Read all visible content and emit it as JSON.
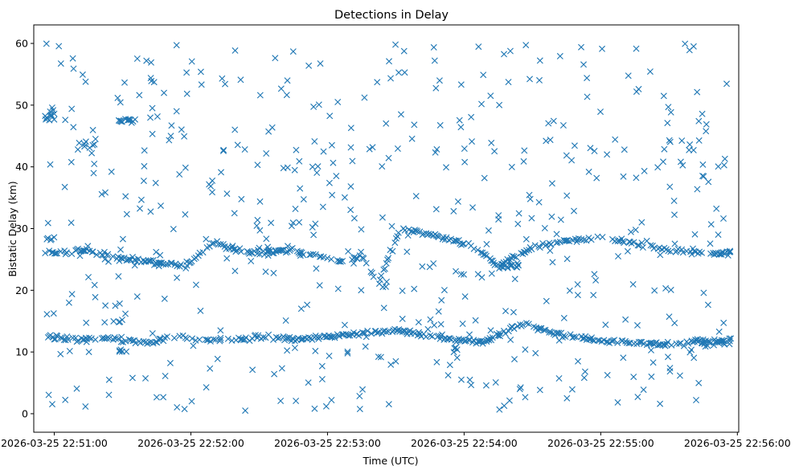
{
  "chart_data": {
    "type": "scatter",
    "title": "Detections in Delay",
    "xlabel": "Time (UTC)",
    "ylabel": "Bistatic Delay (km)",
    "marker": "x",
    "color": "#1f77b4",
    "x_unit": "seconds since 2026-03-25 22:50:00",
    "xlim": [
      51.0,
      360.6
    ],
    "ylim": [
      -3.0,
      63.0
    ],
    "xticks": [
      60,
      120,
      180,
      240,
      300,
      360
    ],
    "xtick_labels": [
      "2026-03-25 22:51:00",
      "2026-03-25 22:52:00",
      "2026-03-25 22:53:00",
      "2026-03-25 22:54:00",
      "2026-03-25 22:55:00",
      "2026-03-25 22:56:00"
    ],
    "yticks": [
      0,
      10,
      20,
      30,
      40,
      50,
      60
    ],
    "ytick_labels": [
      "0",
      "10",
      "20",
      "30",
      "40",
      "50",
      "60"
    ],
    "time_span": [
      56,
      357
    ],
    "tracks": [
      {
        "name": "upper-track",
        "points": [
          [
            56,
            26.0
          ],
          [
            75,
            26.5
          ],
          [
            90,
            25.0
          ],
          [
            105,
            24.5
          ],
          [
            118,
            24.0
          ],
          [
            130,
            27.8
          ],
          [
            140,
            26.5
          ],
          [
            152,
            26.0
          ],
          [
            162,
            26.5
          ],
          [
            175,
            25.8
          ],
          [
            185,
            24.5
          ],
          [
            195,
            25.5
          ],
          [
            202,
            21.0
          ],
          [
            212,
            30.0
          ],
          [
            225,
            29.0
          ],
          [
            242,
            27.5
          ],
          [
            255,
            24.0
          ],
          [
            270,
            27.0
          ],
          [
            285,
            28.0
          ],
          [
            300,
            28.5
          ],
          [
            315,
            27.5
          ],
          [
            330,
            26.5
          ],
          [
            345,
            26.0
          ],
          [
            357,
            26.0
          ]
        ]
      },
      {
        "name": "lower-track",
        "points": [
          [
            56,
            12.5
          ],
          [
            70,
            12.0
          ],
          [
            85,
            12.3
          ],
          [
            100,
            11.5
          ],
          [
            115,
            12.5
          ],
          [
            128,
            11.8
          ],
          [
            140,
            12.0
          ],
          [
            155,
            12.5
          ],
          [
            168,
            12.0
          ],
          [
            180,
            12.5
          ],
          [
            195,
            13.0
          ],
          [
            210,
            13.5
          ],
          [
            220,
            13.0
          ],
          [
            235,
            12.0
          ],
          [
            248,
            11.5
          ],
          [
            265,
            14.5
          ],
          [
            280,
            13.0
          ],
          [
            295,
            12.0
          ],
          [
            310,
            11.5
          ],
          [
            325,
            11.2
          ],
          [
            340,
            11.5
          ],
          [
            357,
            12.0
          ]
        ]
      }
    ],
    "clusters": [
      {
        "x": [
          56,
          60
        ],
        "y": 48.0,
        "n": 10
      },
      {
        "x": [
          88,
          96
        ],
        "y": 47.5,
        "n": 14
      },
      {
        "x": [
          56,
          60
        ],
        "y": 28.5,
        "n": 5
      },
      {
        "x": [
          73,
          78
        ],
        "y": 43.5,
        "n": 6
      },
      {
        "x": [
          82,
          90
        ],
        "y": 15.0,
        "n": 5
      },
      {
        "x": [
          86,
          92
        ],
        "y": 10.0,
        "n": 5
      },
      {
        "x": [
          148,
          158
        ],
        "y": 26.5,
        "n": 6
      },
      {
        "x": [
          235,
          240
        ],
        "y": 10.5,
        "n": 5
      },
      {
        "x": [
          256,
          266
        ],
        "y": 24.0,
        "n": 14
      },
      {
        "x": [
          340,
          357
        ],
        "y": 11.5,
        "n": 14
      },
      {
        "x": [
          352,
          357
        ],
        "y": 26.0,
        "n": 6
      }
    ],
    "scatter_noise": {
      "n": 520,
      "y_range": [
        0.5,
        60.0
      ],
      "seed": 20260325
    }
  }
}
